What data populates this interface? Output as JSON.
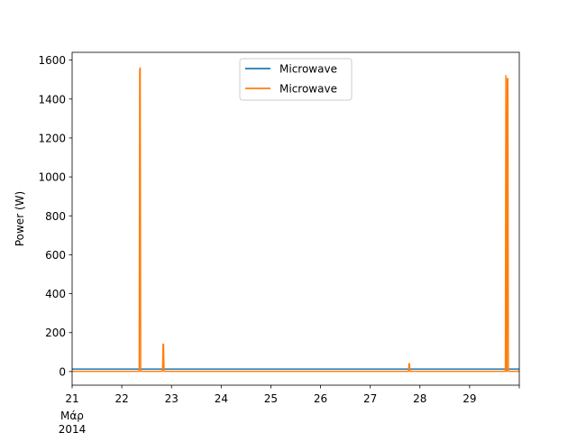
{
  "chart_data": {
    "type": "line",
    "title": "",
    "xlabel": "",
    "ylabel": "Power (W)",
    "x_ticks": [
      "21",
      "22",
      "23",
      "24",
      "25",
      "26",
      "27",
      "28",
      "29"
    ],
    "x_tick_secondary": [
      "Μάρ",
      "2014"
    ],
    "xlim": [
      21,
      30
    ],
    "ylim": [
      -70,
      1640
    ],
    "y_ticks": [
      0,
      200,
      400,
      600,
      800,
      1000,
      1200,
      1400,
      1600
    ],
    "grid": false,
    "legend_position": "top-center",
    "series": [
      {
        "name": "Microwave",
        "color": "#1f77b4",
        "x": [
          21.0,
          30.0
        ],
        "y": [
          13,
          13
        ]
      },
      {
        "name": "Microwave",
        "color": "#ff7f0e",
        "x": [
          21.0,
          22.35,
          22.36,
          22.37,
          22.38,
          22.39,
          22.82,
          22.83,
          22.84,
          22.85,
          27.77,
          27.78,
          27.79,
          27.8,
          29.72,
          29.73,
          29.74,
          29.75,
          29.76,
          29.77,
          29.78,
          30.0
        ],
        "y": [
          1,
          1,
          1550,
          1560,
          1,
          1,
          1,
          140,
          140,
          1,
          1,
          40,
          40,
          1,
          1,
          1520,
          1,
          1,
          1505,
          1505,
          1,
          1
        ]
      }
    ]
  }
}
